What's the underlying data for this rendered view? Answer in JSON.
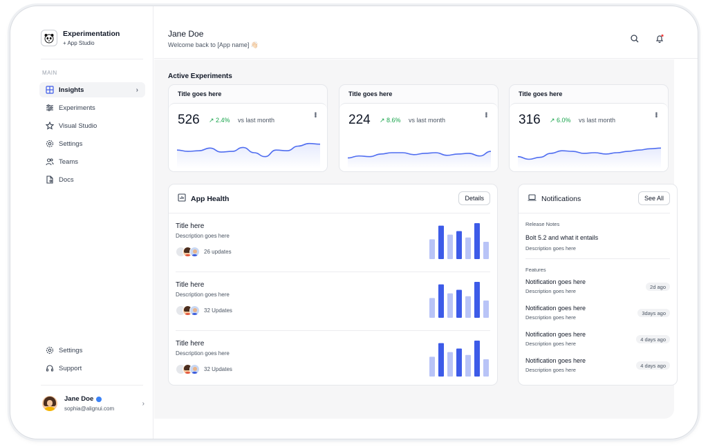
{
  "brand": {
    "title": "Experimentation",
    "subtitle": "+ App Studio",
    "logo_icon": "panda-logo-icon"
  },
  "sidebar": {
    "section_label": "MAIN",
    "items": [
      {
        "label": "Insights",
        "icon": "grid-icon",
        "active": true
      },
      {
        "label": "Experiments",
        "icon": "sliders-icon",
        "active": false
      },
      {
        "label": "Visual Studio",
        "icon": "star-icon",
        "active": false
      },
      {
        "label": "Settings",
        "icon": "gear-icon",
        "active": false
      },
      {
        "label": "Teams",
        "icon": "users-icon",
        "active": false
      },
      {
        "label": "Docs",
        "icon": "doc-icon",
        "active": false
      }
    ],
    "bottom_items": [
      {
        "label": "Settings",
        "icon": "gear-icon"
      },
      {
        "label": "Support",
        "icon": "headset-icon"
      }
    ],
    "user": {
      "name": "Jane Doe",
      "email": "sophia@alignui.com"
    }
  },
  "header": {
    "name": "Jane Doe",
    "welcome": "Welcome back to [App name] 👋🏻",
    "icons": [
      "search-icon",
      "bell-icon"
    ]
  },
  "main": {
    "section_title": "Active Experiments",
    "stats": [
      {
        "title": "Title goes here",
        "value": "526",
        "delta": "2.4%",
        "vs": "vs last month",
        "series": [
          24,
          22,
          23,
          27,
          21,
          22,
          28,
          20,
          14,
          24,
          23,
          30,
          34,
          33
        ]
      },
      {
        "title": "Title goes here",
        "value": "224",
        "delta": "8.6%",
        "vs": "vs last month",
        "series": [
          12,
          15,
          14,
          18,
          20,
          20,
          17,
          19,
          20,
          16,
          18,
          19,
          15,
          22
        ]
      },
      {
        "title": "Title goes here",
        "value": "316",
        "delta": "6.0%",
        "vs": "vs last month",
        "series": [
          14,
          10,
          13,
          19,
          23,
          22,
          19,
          20,
          18,
          20,
          22,
          24,
          26,
          27
        ]
      }
    ],
    "health": {
      "title": "App Health",
      "button": "Details",
      "rows": [
        {
          "title": "Title here",
          "description": "Description goes here",
          "count": "26 updates",
          "bars": [
            0.55,
            0.93,
            0.68,
            0.78,
            0.6,
            1.0,
            0.48
          ]
        },
        {
          "title": "Title here",
          "description": "Description goes here",
          "count": "32 Updates",
          "bars": [
            0.55,
            0.93,
            0.68,
            0.78,
            0.6,
            1.0,
            0.48
          ]
        },
        {
          "title": "Title here",
          "description": "Description goes here",
          "count": "32 Updates",
          "bars": [
            0.55,
            0.93,
            0.68,
            0.78,
            0.6,
            1.0,
            0.48
          ]
        }
      ],
      "bar_colors": {
        "light": "#b9c4f7",
        "dark": "#3d5be8"
      }
    },
    "notifications": {
      "title": "Notifications",
      "button": "See All",
      "release_label": "Release Notes",
      "release_title": "Bolt 5.2 and what it entails",
      "release_desc": "Description goes here",
      "features_label": "Features",
      "items": [
        {
          "title": "Notification goes here",
          "desc": "Description goes here",
          "time": "2d ago"
        },
        {
          "title": "Notification goes here",
          "desc": "Description goes here",
          "time": "3days ago"
        },
        {
          "title": "Notification goes here",
          "desc": "Description goes here",
          "time": "4 days ago"
        },
        {
          "title": "Notification goes here",
          "desc": "Description goes here",
          "time": "4 days ago"
        }
      ]
    }
  },
  "colors": {
    "accent": "#3d5be8",
    "positive": "#16a34a",
    "spark_line": "#4f6df0"
  }
}
